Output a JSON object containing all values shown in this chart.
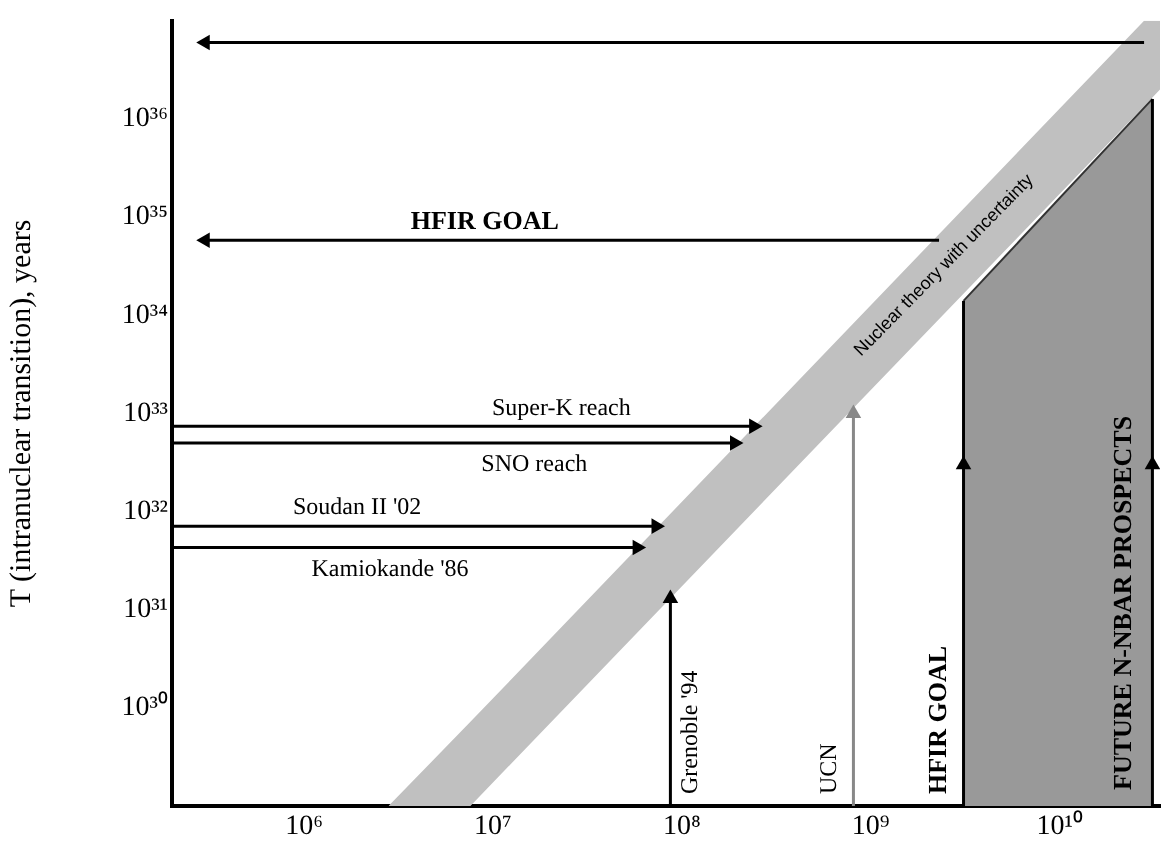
{
  "chart_data": {
    "type": "line",
    "ylabel": "T (intranuclear transition), years",
    "log": "xy",
    "grid": false,
    "legend": false,
    "xlim": [
      200000,
      34000000000
    ],
    "ylim": [
      1e+29,
      1e+37
    ],
    "xticks": [
      {
        "value": 1000000,
        "label": "10⁶"
      },
      {
        "value": 10000000,
        "label": "10⁷"
      },
      {
        "value": 100000000,
        "label": "10⁸"
      },
      {
        "value": 1000000000,
        "label": "10⁹"
      },
      {
        "value": 10000000000,
        "label": "10¹⁰"
      }
    ],
    "yticks": [
      {
        "value": 1e+30,
        "label": "10³⁰"
      },
      {
        "value": 1e+31,
        "label": "10³¹"
      },
      {
        "value": 1e+32,
        "label": "10³²"
      },
      {
        "value": 1e+33,
        "label": "10³³"
      },
      {
        "value": 1e+34,
        "label": "10³⁴"
      },
      {
        "value": 1e+35,
        "label": "10³⁵"
      },
      {
        "value": 1e+36,
        "label": "10³⁶"
      }
    ],
    "series": [
      {
        "name": "Nuclear theory with uncertainty",
        "type": "area",
        "x": [
          2800000,
          7600000,
          28000000000,
          34000000000
        ],
        "values": [
          null,
          null,
          null,
          null
        ],
        "lower": [
          1e+29,
          1e+29,
          1.35e+36,
          2e+36
        ],
        "upper": [
          1e+29,
          7.2e+29,
          1e+37,
          1e+37
        ]
      },
      {
        "name": "FUTURE N-NBAR PROSPECTS",
        "type": "area",
        "color": "#999999",
        "x": [
          3100000000,
          31000000000
        ],
        "values": [
          1.4e+34,
          1.6e+36
        ]
      },
      {
        "color": "#000000",
        "marker": "triangle",
        "x": [
          28000000000,
          300000
        ],
        "values": [
          6e+36,
          6e+36
        ]
      },
      {
        "name": "HFIR GOAL",
        "color": "#000000",
        "marker": "triangle",
        "x": [
          2300000000,
          300000
        ],
        "values": [
          5.8e+34,
          5.8e+34
        ]
      },
      {
        "name": "Super-K reach",
        "color": "#000000",
        "marker": "triangle",
        "x": [
          200000,
          240000000
        ],
        "values": [
          7.4e+32,
          7.4e+32
        ]
      },
      {
        "name": "SNO reach",
        "color": "#000000",
        "marker": "triangle",
        "x": [
          200000,
          190000000
        ],
        "values": [
          5e+32,
          5e+32
        ]
      },
      {
        "name": "Soudan II '02",
        "color": "#000000",
        "marker": "triangle",
        "x": [
          200000,
          73000000
        ],
        "values": [
          7.1e+31,
          7.1e+31
        ]
      },
      {
        "name": "Kamiokande '86",
        "color": "#000000",
        "marker": "triangle",
        "x": [
          200000,
          58000000
        ],
        "values": [
          4.3e+31,
          4.3e+31
        ]
      },
      {
        "name": "Grenoble '94",
        "color": "#000000",
        "marker": "triangle",
        "x": [
          87000000,
          87000000
        ],
        "values": [
          1e+29,
          1.3e+31
        ]
      },
      {
        "name": "UCN",
        "color": "#888888",
        "marker": "triangle",
        "x": [
          810000000,
          810000000
        ],
        "values": [
          1e+29,
          1e+33
        ]
      },
      {
        "name": "HFIR GOAL",
        "color": "#000000",
        "marker": "triangle",
        "x": [
          3100000000,
          3100000000
        ],
        "values": [
          1e+29,
          3e+32
        ]
      },
      {
        "color": "#000000",
        "x": [
          3100000000,
          3100000000
        ],
        "values": [
          3e+32,
          1.4e+34
        ]
      },
      {
        "color": "#000000",
        "marker": "triangle",
        "x": [
          31000000000,
          31000000000
        ],
        "values": [
          1e+29,
          3e+32
        ]
      },
      {
        "color": "#000000",
        "x": [
          31000000000,
          31000000000
        ],
        "values": [
          3e+32,
          1.6e+36
        ]
      }
    ]
  }
}
